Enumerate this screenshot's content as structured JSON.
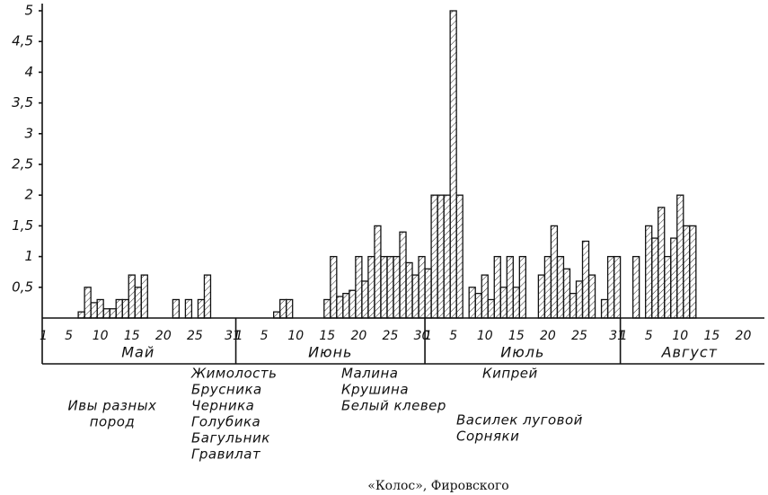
{
  "chart_data": {
    "type": "bar",
    "color": "#111",
    "categories": [
      "1",
      null,
      null,
      null,
      "5",
      null,
      null,
      null,
      null,
      "10",
      null,
      null,
      null,
      null,
      "15",
      null,
      null,
      null,
      null,
      "20",
      null,
      null,
      null,
      null,
      "25",
      null,
      null,
      null,
      null,
      null,
      "31",
      "1",
      null,
      null,
      null,
      "5",
      null,
      null,
      null,
      null,
      "10",
      null,
      null,
      null,
      null,
      "15",
      null,
      null,
      null,
      null,
      "20",
      null,
      null,
      null,
      null,
      "25",
      null,
      null,
      null,
      null,
      "30",
      "1",
      null,
      null,
      null,
      "5",
      null,
      null,
      null,
      null,
      "10",
      null,
      null,
      null,
      null,
      "15",
      null,
      null,
      null,
      null,
      "20",
      null,
      null,
      null,
      null,
      "25",
      null,
      null,
      null,
      null,
      null,
      "31",
      "1",
      null,
      null,
      null,
      "5",
      null,
      null,
      null,
      null,
      "10",
      null,
      null,
      null,
      null,
      "15",
      null,
      null,
      null,
      null,
      "20",
      null,
      null
    ],
    "values": [
      0,
      0,
      0,
      0,
      0,
      0,
      0.1,
      0.5,
      0.25,
      0.3,
      0.15,
      0.15,
      0.3,
      0.3,
      0.7,
      0.5,
      0.7,
      0,
      0,
      0,
      0,
      0.3,
      0,
      0.3,
      0,
      0.3,
      0.7,
      0,
      0,
      0,
      0,
      0,
      0,
      0,
      0,
      0,
      0,
      0.1,
      0.3,
      0.3,
      0,
      0,
      0,
      0,
      0,
      0.3,
      1,
      0.35,
      0.4,
      0.45,
      1,
      0.6,
      1,
      1.5,
      1,
      1,
      1,
      1.4,
      0.9,
      0.7,
      1,
      0.8,
      2,
      2,
      2,
      5,
      2,
      0,
      0.5,
      0.4,
      0.7,
      0.3,
      1,
      0.5,
      1,
      0.5,
      1,
      0,
      0,
      0.7,
      1,
      1.5,
      1,
      0.8,
      0.4,
      0.6,
      1.25,
      0.7,
      0,
      0.3,
      1,
      1,
      0,
      0,
      1,
      0,
      1.5,
      1.3,
      1.8,
      1,
      1.3,
      2,
      1.5,
      1.5,
      0,
      0,
      0,
      0,
      0,
      0,
      0,
      0,
      0,
      0
    ],
    "months": [
      "Май",
      "Июнь",
      "Июль",
      "Август"
    ],
    "ylim": [
      0,
      5
    ],
    "yticks": [
      {
        "value": 0.5,
        "label": "0,5"
      },
      1,
      {
        "value": 1.5,
        "label": "1,5"
      },
      2,
      {
        "value": 2.5,
        "label": "2,5"
      },
      3,
      {
        "value": 3.5,
        "label": "3,5"
      },
      4,
      {
        "value": 4.5,
        "label": "4,5"
      },
      5
    ],
    "annotations": [
      {
        "lines": [
          "Ивы разных",
          "пород"
        ]
      },
      {
        "lines": [
          "Жимолость",
          "Брусника",
          "Черника",
          "Голубика",
          "Багульник",
          "Гравилат"
        ]
      },
      {
        "lines": [
          "Малина",
          "Крушина",
          "Белый клевер"
        ]
      },
      {
        "lines": [
          "Кипрей"
        ]
      },
      {
        "lines": [
          "Василек луговой",
          "Сорняки"
        ]
      }
    ],
    "caption": "«Колос», Фировского"
  }
}
